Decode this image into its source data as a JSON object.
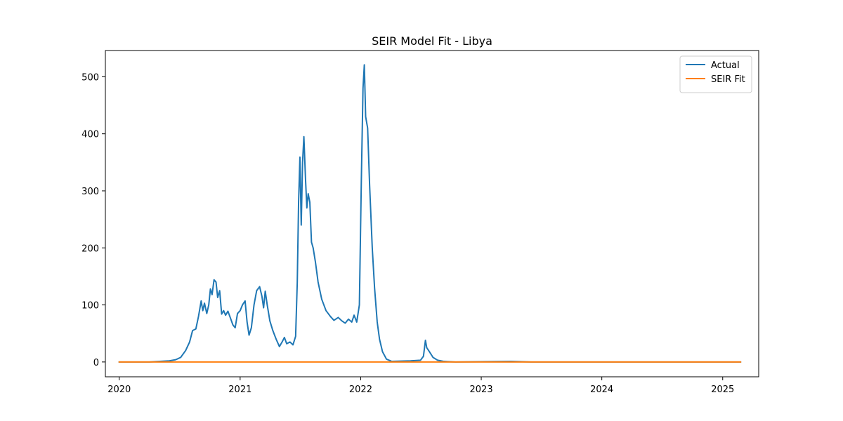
{
  "chart_data": {
    "type": "line",
    "title": "SEIR Model Fit - Libya",
    "xlabel": "",
    "ylabel": "",
    "x_axis_type": "date",
    "xlim": [
      "2019-11-20",
      "2025-04-20"
    ],
    "ylim": [
      -26,
      546
    ],
    "x_ticks": [
      {
        "date": "2020-01-01",
        "label": "2020"
      },
      {
        "date": "2021-01-01",
        "label": "2021"
      },
      {
        "date": "2022-01-01",
        "label": "2022"
      },
      {
        "date": "2023-01-01",
        "label": "2023"
      },
      {
        "date": "2024-01-01",
        "label": "2024"
      },
      {
        "date": "2025-01-01",
        "label": "2025"
      }
    ],
    "y_ticks": [
      0,
      100,
      200,
      300,
      400,
      500
    ],
    "grid": false,
    "legend_position": "upper right",
    "series": [
      {
        "name": "Actual",
        "color": "#1f77b4",
        "points": [
          [
            "2020-01-01",
            0
          ],
          [
            "2020-04-01",
            0
          ],
          [
            "2020-06-01",
            2
          ],
          [
            "2020-06-20",
            4
          ],
          [
            "2020-07-05",
            8
          ],
          [
            "2020-07-20",
            20
          ],
          [
            "2020-08-01",
            35
          ],
          [
            "2020-08-10",
            55
          ],
          [
            "2020-08-20",
            58
          ],
          [
            "2020-08-28",
            80
          ],
          [
            "2020-09-05",
            107
          ],
          [
            "2020-09-10",
            90
          ],
          [
            "2020-09-15",
            103
          ],
          [
            "2020-09-22",
            85
          ],
          [
            "2020-09-28",
            100
          ],
          [
            "2020-10-03",
            128
          ],
          [
            "2020-10-08",
            118
          ],
          [
            "2020-10-14",
            144
          ],
          [
            "2020-10-20",
            140
          ],
          [
            "2020-10-25",
            113
          ],
          [
            "2020-10-31",
            125
          ],
          [
            "2020-11-06",
            84
          ],
          [
            "2020-11-12",
            90
          ],
          [
            "2020-11-18",
            82
          ],
          [
            "2020-11-25",
            89
          ],
          [
            "2020-12-02",
            78
          ],
          [
            "2020-12-10",
            65
          ],
          [
            "2020-12-17",
            60
          ],
          [
            "2020-12-24",
            85
          ],
          [
            "2021-01-01",
            90
          ],
          [
            "2021-01-08",
            100
          ],
          [
            "2021-01-16",
            107
          ],
          [
            "2021-01-22",
            70
          ],
          [
            "2021-01-28",
            47
          ],
          [
            "2021-02-04",
            60
          ],
          [
            "2021-02-12",
            100
          ],
          [
            "2021-02-20",
            125
          ],
          [
            "2021-03-01",
            132
          ],
          [
            "2021-03-08",
            115
          ],
          [
            "2021-03-13",
            95
          ],
          [
            "2021-03-18",
            124
          ],
          [
            "2021-03-24",
            100
          ],
          [
            "2021-04-01",
            72
          ],
          [
            "2021-04-10",
            55
          ],
          [
            "2021-04-20",
            40
          ],
          [
            "2021-04-30",
            27
          ],
          [
            "2021-05-08",
            35
          ],
          [
            "2021-05-15",
            43
          ],
          [
            "2021-05-22",
            32
          ],
          [
            "2021-06-01",
            35
          ],
          [
            "2021-06-10",
            30
          ],
          [
            "2021-06-18",
            45
          ],
          [
            "2021-06-23",
            140
          ],
          [
            "2021-06-27",
            280
          ],
          [
            "2021-07-01",
            359
          ],
          [
            "2021-07-05",
            240
          ],
          [
            "2021-07-09",
            350
          ],
          [
            "2021-07-13",
            395
          ],
          [
            "2021-07-18",
            320
          ],
          [
            "2021-07-22",
            270
          ],
          [
            "2021-07-26",
            295
          ],
          [
            "2021-07-31",
            280
          ],
          [
            "2021-08-05",
            210
          ],
          [
            "2021-08-10",
            200
          ],
          [
            "2021-08-17",
            175
          ],
          [
            "2021-08-25",
            140
          ],
          [
            "2021-09-05",
            110
          ],
          [
            "2021-09-18",
            90
          ],
          [
            "2021-10-01",
            80
          ],
          [
            "2021-10-12",
            73
          ],
          [
            "2021-10-25",
            78
          ],
          [
            "2021-11-05",
            72
          ],
          [
            "2021-11-15",
            68
          ],
          [
            "2021-11-25",
            75
          ],
          [
            "2021-12-05",
            70
          ],
          [
            "2021-12-12",
            82
          ],
          [
            "2021-12-20",
            70
          ],
          [
            "2021-12-28",
            100
          ],
          [
            "2022-01-03",
            320
          ],
          [
            "2022-01-08",
            480
          ],
          [
            "2022-01-12",
            521
          ],
          [
            "2022-01-16",
            430
          ],
          [
            "2022-01-22",
            410
          ],
          [
            "2022-01-28",
            310
          ],
          [
            "2022-02-05",
            200
          ],
          [
            "2022-02-12",
            130
          ],
          [
            "2022-02-20",
            70
          ],
          [
            "2022-02-27",
            40
          ],
          [
            "2022-03-08",
            18
          ],
          [
            "2022-03-20",
            5
          ],
          [
            "2022-04-05",
            1
          ],
          [
            "2022-06-01",
            2
          ],
          [
            "2022-07-01",
            3
          ],
          [
            "2022-07-10",
            10
          ],
          [
            "2022-07-16",
            38
          ],
          [
            "2022-07-20",
            25
          ],
          [
            "2022-07-28",
            18
          ],
          [
            "2022-08-08",
            8
          ],
          [
            "2022-08-22",
            3
          ],
          [
            "2022-09-10",
            1
          ],
          [
            "2022-10-15",
            0
          ],
          [
            "2023-04-01",
            1
          ],
          [
            "2023-06-01",
            0
          ],
          [
            "2025-02-24",
            0
          ]
        ]
      },
      {
        "name": "SEIR Fit",
        "color": "#ff7f0e",
        "points": [
          [
            "2020-01-01",
            0
          ],
          [
            "2025-02-24",
            0
          ]
        ]
      }
    ]
  }
}
